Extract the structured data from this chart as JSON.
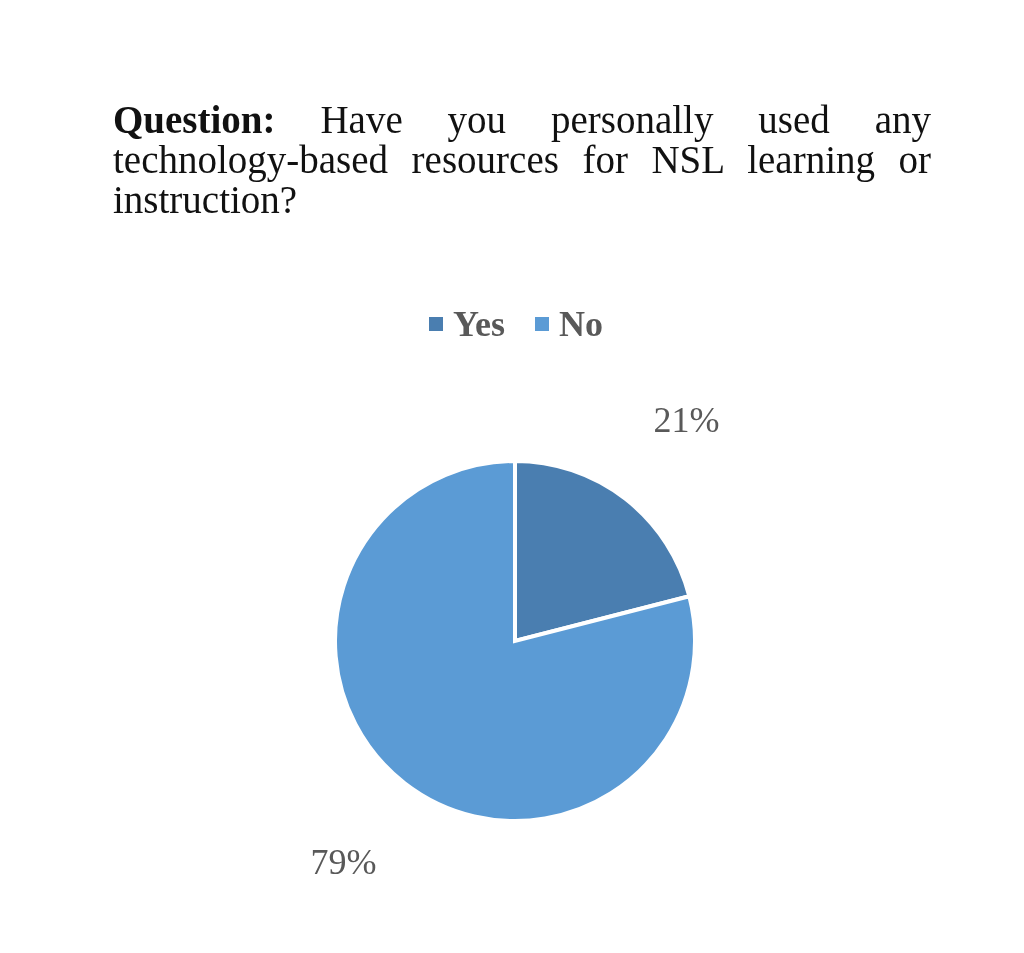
{
  "chart_data": {
    "type": "pie",
    "title": "Question: Have you personally used any technology-based resources for NSL learning or instruction?",
    "categories": [
      "Yes",
      "No"
    ],
    "values": [
      21,
      79
    ],
    "colors": [
      "#4a7eb0",
      "#5b9bd5"
    ],
    "value_labels": [
      "21%",
      "79%"
    ],
    "legend": "top"
  }
}
